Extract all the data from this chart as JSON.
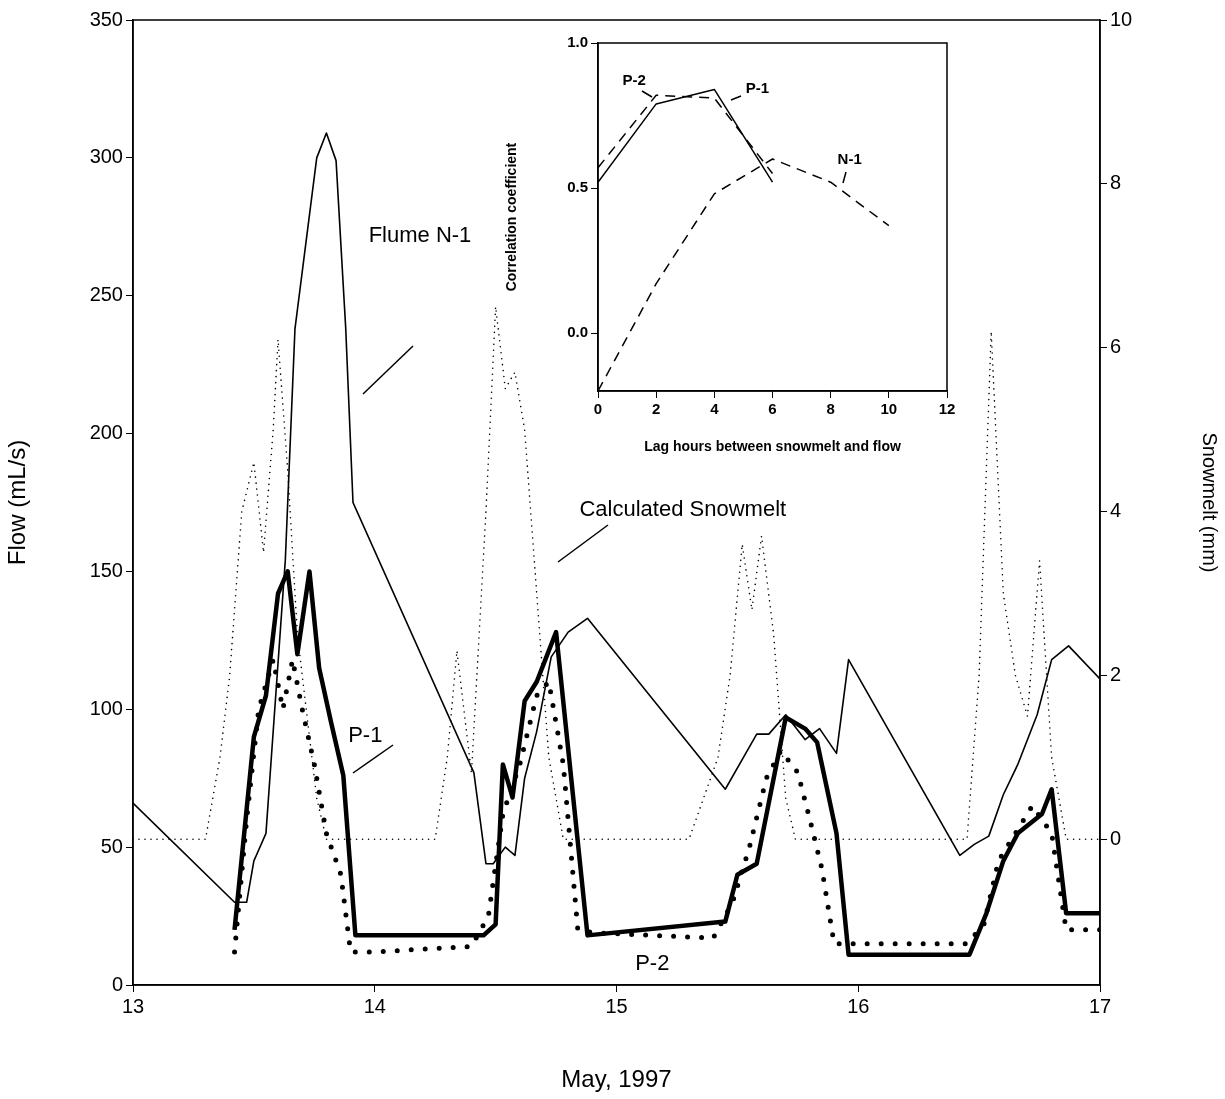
{
  "chart_data": [
    {
      "type": "line",
      "xlabel": "May, 1997",
      "ylabel": "Flow (mL/s)",
      "y2label": "Snowmelt (mm)",
      "xlim": [
        13,
        17
      ],
      "xticks": [
        13,
        14,
        15,
        16,
        17
      ],
      "ylim": [
        0,
        350
      ],
      "yticks": [
        0,
        50,
        100,
        150,
        200,
        250,
        300,
        350
      ],
      "y2lim": [
        -1.78,
        10
      ],
      "y2ticks": [
        0,
        2,
        4,
        6,
        8,
        10
      ],
      "grid": false,
      "legend": false,
      "series": [
        {
          "name": "Flume N-1",
          "color": "#000000",
          "line_style": "solid",
          "x": [
            13.0,
            13.42,
            13.47,
            13.5,
            13.55,
            13.63,
            13.67,
            13.76,
            13.8,
            13.84,
            13.88,
            13.91,
            14.41,
            14.46,
            14.49,
            14.54,
            14.58,
            14.62,
            14.67,
            14.73,
            14.8,
            14.88,
            15.45,
            15.58,
            15.63,
            15.7,
            15.78,
            15.84,
            15.91,
            15.96,
            16.42,
            16.48,
            16.54,
            16.6,
            16.66,
            16.74,
            16.8,
            16.87,
            17.0
          ],
          "values": [
            66,
            30,
            30,
            45,
            55,
            154,
            238,
            300,
            309,
            299,
            238,
            175,
            77,
            44,
            44,
            50,
            47,
            75,
            92,
            119,
            128,
            133,
            71,
            91,
            91,
            98,
            89,
            93,
            84,
            118,
            47,
            51,
            54,
            69,
            80,
            98,
            118,
            123,
            111
          ]
        },
        {
          "name": "P-1",
          "color": "#000000",
          "line_style": "solid",
          "x": [
            13.42,
            13.5,
            13.55,
            13.6,
            13.64,
            13.68,
            13.73,
            13.77,
            13.82,
            13.87,
            13.92,
            14.45,
            14.5,
            14.53,
            14.57,
            14.62,
            14.67,
            14.75,
            14.88,
            15.45,
            15.5,
            15.58,
            15.7,
            15.78,
            15.83,
            15.91,
            15.96,
            16.46,
            16.53,
            16.6,
            16.66,
            16.76,
            16.8,
            16.86,
            17.0
          ],
          "values": [
            20,
            90,
            105,
            142,
            150,
            120,
            150,
            115,
            95,
            76,
            18,
            18,
            22,
            80,
            68,
            103,
            110,
            128,
            18,
            23,
            40,
            44,
            97,
            93,
            88,
            55,
            11,
            11,
            26,
            45,
            55,
            62,
            71,
            26,
            26
          ]
        },
        {
          "name": "P-2",
          "color": "#000000",
          "line_style": "dotted",
          "x": [
            13.42,
            13.47,
            13.52,
            13.58,
            13.62,
            13.66,
            13.7,
            13.75,
            13.8,
            13.86,
            13.9,
            14.0,
            14.4,
            14.47,
            14.53,
            14.6,
            14.67,
            14.72,
            14.78,
            14.84,
            14.9,
            15.4,
            15.48,
            15.55,
            15.62,
            15.68,
            15.75,
            15.8,
            15.85,
            15.9,
            16.45,
            16.52,
            16.58,
            16.65,
            16.72,
            16.8,
            16.86,
            17.0
          ],
          "values": [
            12,
            60,
            100,
            118,
            100,
            118,
            100,
            80,
            55,
            40,
            12,
            12,
            14,
            25,
            62,
            80,
            105,
            110,
            80,
            20,
            19,
            17,
            30,
            50,
            75,
            85,
            77,
            60,
            42,
            15,
            15,
            22,
            45,
            55,
            65,
            55,
            20,
            20
          ]
        },
        {
          "name": "Calculated Snowmelt",
          "color": "#000000",
          "line_style": "dotted",
          "axis": "y2",
          "x": [
            13.0,
            13.3,
            13.36,
            13.4,
            13.45,
            13.5,
            13.54,
            13.58,
            13.6,
            13.64,
            13.68,
            13.72,
            13.76,
            13.8,
            14.25,
            14.3,
            14.34,
            14.4,
            14.46,
            14.5,
            14.54,
            14.58,
            14.62,
            14.67,
            14.72,
            14.78,
            15.3,
            15.36,
            15.42,
            15.47,
            15.52,
            15.56,
            15.6,
            15.65,
            15.7,
            15.74,
            16.45,
            16.5,
            16.55,
            16.6,
            16.65,
            16.7,
            16.75,
            16.8,
            16.86,
            17.0
          ],
          "values": [
            0,
            0,
            1,
            2,
            4,
            4.6,
            3.5,
            5,
            6.1,
            4.5,
            2.5,
            1.5,
            0.5,
            0,
            0,
            1,
            2.3,
            0.8,
            4,
            6.5,
            5.5,
            5.7,
            5,
            3,
            1,
            0,
            0,
            0.5,
            1,
            2,
            3.6,
            2.8,
            3.7,
            2.5,
            0.5,
            0,
            0,
            2,
            6.2,
            3,
            2,
            1.5,
            3.4,
            1,
            0,
            0
          ]
        }
      ]
    },
    {
      "type": "line",
      "xlabel": "Lag hours between snowmelt and flow",
      "ylabel": "Correlation coefficient",
      "xlim": [
        0,
        12
      ],
      "xticks": [
        0,
        2,
        4,
        6,
        8,
        10,
        12
      ],
      "ylim": [
        -0.2,
        1.0
      ],
      "yticks": [
        {
          "value": 0,
          "label": "0.0"
        },
        {
          "value": 0.5,
          "label": "0.5"
        },
        {
          "value": 1,
          "label": "1.0"
        }
      ],
      "grid": false,
      "legend": false,
      "series": [
        {
          "name": "P-1",
          "color": "#000000",
          "line_style": "solid",
          "x": [
            0,
            2,
            4,
            6
          ],
          "values": [
            0.52,
            0.79,
            0.84,
            0.52
          ]
        },
        {
          "name": "P-2",
          "color": "#000000",
          "line_style": "dashed",
          "x": [
            0,
            2,
            4,
            6
          ],
          "values": [
            0.57,
            0.82,
            0.81,
            0.55
          ]
        },
        {
          "name": "N-1",
          "color": "#000000",
          "line_style": "dashed",
          "x": [
            0,
            2,
            4,
            6,
            8,
            10
          ],
          "values": [
            -0.2,
            0.17,
            0.48,
            0.6,
            0.52,
            0.37
          ]
        }
      ]
    }
  ]
}
